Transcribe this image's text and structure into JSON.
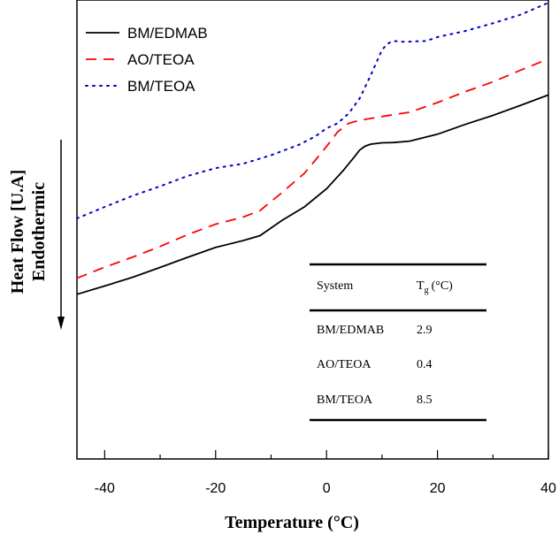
{
  "chart_data": {
    "type": "line",
    "xlabel": "Temperature (°C)",
    "ylabel_line1": "Heat Flow [U.A]",
    "ylabel_line2": "Endothermic",
    "xlim": [
      -45,
      40
    ],
    "xticks": [
      -40,
      -20,
      0,
      20,
      40
    ],
    "y_units": "arbitrary",
    "legend_position": "top-left",
    "series": [
      {
        "name": "BM/EDMAB",
        "color": "#000000",
        "dash": "solid",
        "x": [
          -45,
          -40,
          -35,
          -30,
          -25,
          -20,
          -15,
          -12,
          -8,
          -4,
          0,
          3,
          5,
          6,
          7,
          8,
          10,
          12,
          15,
          20,
          25,
          30,
          35,
          40
        ],
        "y": [
          0.2,
          0.56,
          0.94,
          1.37,
          1.81,
          2.24,
          2.54,
          2.75,
          3.42,
          4.0,
          4.79,
          5.58,
          6.17,
          6.48,
          6.65,
          6.73,
          6.79,
          6.8,
          6.86,
          7.16,
          7.59,
          7.98,
          8.42,
          8.87
        ]
      },
      {
        "name": "AO/TEOA",
        "color": "#ff0000",
        "dash": "dashed",
        "x": [
          -45,
          -40,
          -35,
          -30,
          -25,
          -20,
          -15,
          -12,
          -8,
          -4,
          -2,
          0,
          2,
          4,
          6,
          8,
          10,
          12,
          15,
          20,
          25,
          30,
          35,
          40
        ],
        "y": [
          0.9,
          1.38,
          1.81,
          2.28,
          2.8,
          3.25,
          3.56,
          3.84,
          4.63,
          5.46,
          6.04,
          6.63,
          7.26,
          7.64,
          7.77,
          7.85,
          7.93,
          8.01,
          8.12,
          8.54,
          9.01,
          9.44,
          9.95,
          10.44
        ]
      },
      {
        "name": "BM/TEOA",
        "color": "#0000cc",
        "dash": "dotted",
        "x": [
          -45,
          -40,
          -35,
          -30,
          -25,
          -20,
          -15,
          -10,
          -5,
          -2,
          0,
          2,
          4,
          6,
          8,
          10,
          11,
          12,
          14,
          18,
          20,
          25,
          30,
          35,
          40
        ],
        "y": [
          3.5,
          4.0,
          4.48,
          4.9,
          5.35,
          5.69,
          5.88,
          6.25,
          6.7,
          7.07,
          7.42,
          7.64,
          8.07,
          8.73,
          9.74,
          10.83,
          11.1,
          11.22,
          11.18,
          11.22,
          11.39,
          11.65,
          11.99,
          12.36,
          12.88
        ]
      }
    ],
    "inset_table": {
      "headers": [
        "System",
        "T",
        "g",
        "(°C)"
      ],
      "rows": [
        {
          "system": "BM/EDMAB",
          "tg": "2.9"
        },
        {
          "system": "AO/TEOA",
          "tg": "0.4"
        },
        {
          "system": "BM/TEOA",
          "tg": "8.5"
        }
      ]
    }
  }
}
